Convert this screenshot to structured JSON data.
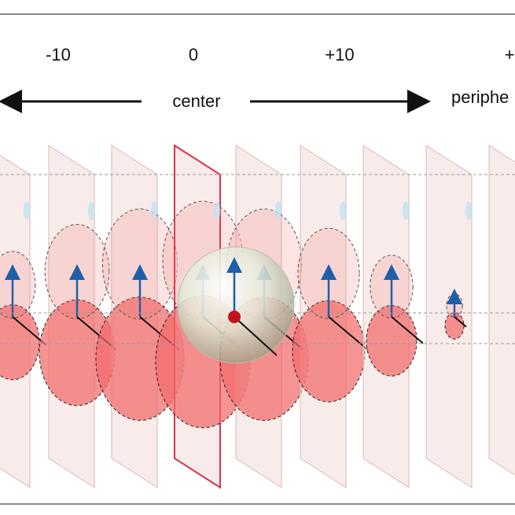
{
  "header": {
    "labels": [
      {
        "name": "offset-minus-10",
        "text": "-10"
      },
      {
        "name": "offset-0",
        "text": "0"
      },
      {
        "name": "offset-plus-10",
        "text": "+10"
      },
      {
        "name": "offset-plus-partial",
        "text": "+"
      }
    ],
    "center_label": "center",
    "periphery_label": "periphe"
  },
  "colors": {
    "plane_fill": "#f3ddd8",
    "plane_stroke": "#d9b8b0",
    "lobe_fill": "#f26a6a",
    "highlight_plane": "#d8334a",
    "arrow_blue": "#1f5fa8",
    "arrow_black": "#111111",
    "sphere": "#dfe6d3",
    "center_dot": "#c0141a",
    "ghost_blue": "#bfe3f5"
  },
  "slices": [
    {
      "id": "slice-1",
      "scale": 0.85
    },
    {
      "id": "slice-2",
      "scale": 1.2
    },
    {
      "id": "slice-3",
      "scale": 1.4
    },
    {
      "id": "slice-center",
      "scale": 1.5
    },
    {
      "id": "slice-5",
      "scale": 1.4
    },
    {
      "id": "slice-6",
      "scale": 1.15
    },
    {
      "id": "slice-7",
      "scale": 0.8
    },
    {
      "id": "slice-8",
      "scale": 0.3
    },
    {
      "id": "slice-9",
      "scale": 0.0
    }
  ]
}
